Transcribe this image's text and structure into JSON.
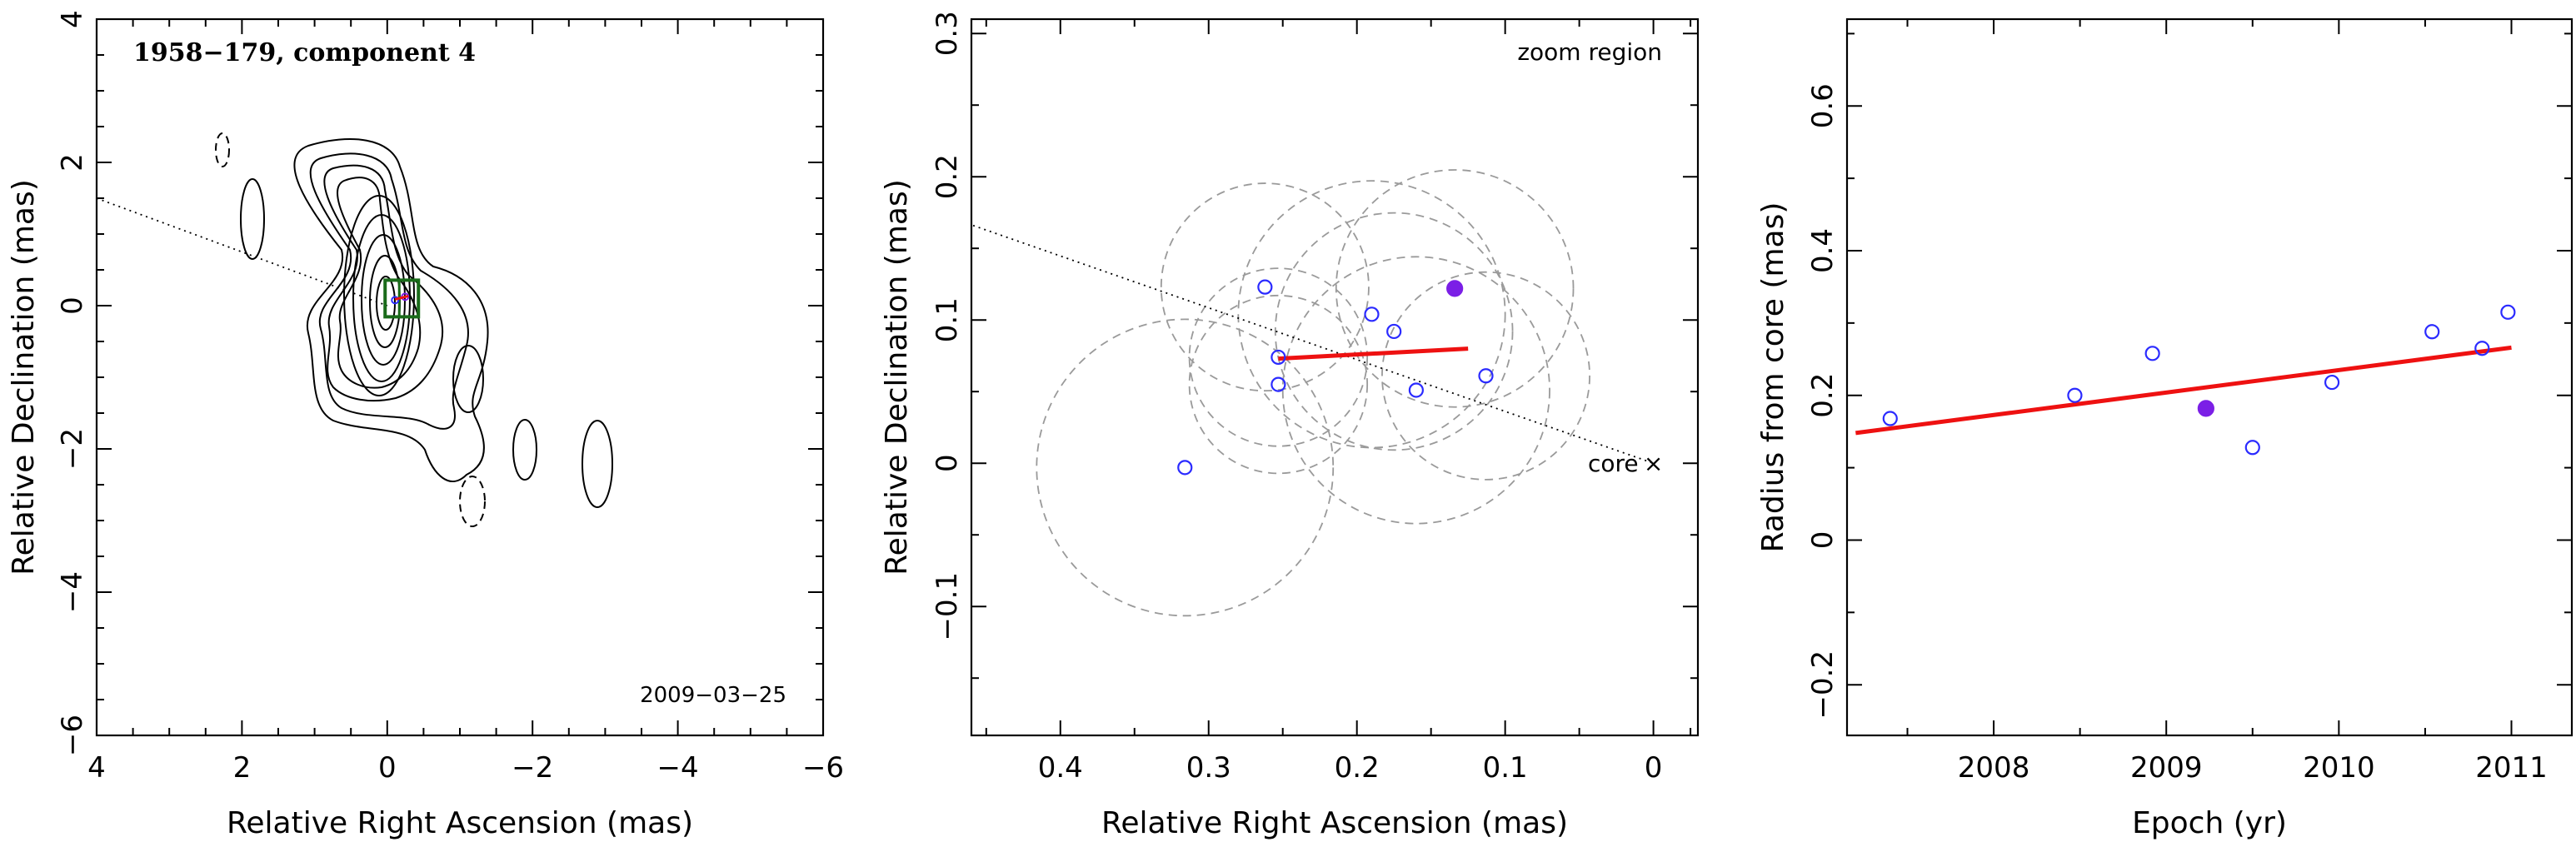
{
  "colors": {
    "open_point": "#2b2bff",
    "filled_point": "#7b1fe6",
    "fit_line": "#ee1111",
    "box": "#1a6b1a",
    "gray_circle": "#9a9a9a"
  },
  "panel1": {
    "title": "1958−179, component 4",
    "date": "2009−03−25",
    "xlabel": "Relative Right Ascension (mas)",
    "ylabel": "Relative Declination (mas)",
    "x_ticks": [
      "4",
      "2",
      "0",
      "−2",
      "−4",
      "−6"
    ],
    "y_ticks": [
      "4",
      "2",
      "0",
      "−2",
      "−4",
      "−6"
    ]
  },
  "panel2": {
    "annotation": "zoom region",
    "core_label": "core",
    "core_marker": "×",
    "xlabel": "Relative Right Ascension (mas)",
    "ylabel": "Relative Declination (mas)",
    "x_ticks": [
      "0.4",
      "0.3",
      "0.2",
      "0.1",
      "0"
    ],
    "y_ticks": [
      "0.3",
      "0.2",
      "0.1",
      "0",
      "−0.1"
    ]
  },
  "panel3": {
    "xlabel": "Epoch (yr)",
    "ylabel": "Radius from core (mas)",
    "x_ticks": [
      "2008",
      "2009",
      "2010",
      "2011"
    ],
    "y_ticks": [
      "0.6",
      "0.4",
      "0.2",
      "0",
      "−0.2"
    ]
  },
  "chart_data": [
    {
      "type": "scatter",
      "panel": "contour map",
      "xlim": [
        4,
        -6
      ],
      "ylim": [
        -6,
        4
      ],
      "ridge_line": {
        "x": [
          4,
          0
        ],
        "y": [
          1.5,
          0
        ]
      },
      "component_box_center": [
        -0.2,
        0.1
      ]
    },
    {
      "type": "scatter",
      "panel": "zoom region",
      "xlim": [
        0.46,
        -0.03
      ],
      "ylim": [
        -0.19,
        0.31
      ],
      "core": [
        0,
        0
      ],
      "points": [
        {
          "x": 0.316,
          "y": -0.003,
          "filled": false
        },
        {
          "x": 0.262,
          "y": 0.123,
          "filled": false
        },
        {
          "x": 0.253,
          "y": 0.074,
          "filled": false
        },
        {
          "x": 0.253,
          "y": 0.055,
          "filled": false
        },
        {
          "x": 0.19,
          "y": 0.104,
          "filled": false
        },
        {
          "x": 0.175,
          "y": 0.092,
          "filled": false
        },
        {
          "x": 0.16,
          "y": 0.051,
          "filled": false
        },
        {
          "x": 0.113,
          "y": 0.061,
          "filled": false
        },
        {
          "x": 0.134,
          "y": 0.122,
          "filled": true
        }
      ],
      "fit_line": {
        "x": [
          0.253,
          0.125
        ],
        "y": [
          0.073,
          0.08
        ]
      },
      "ridge_line": {
        "x": [
          0.47,
          0
        ],
        "y": [
          0.17,
          0
        ]
      },
      "error_circles": [
        {
          "x": 0.262,
          "y": 0.123,
          "r": 0.07
        },
        {
          "x": 0.19,
          "y": 0.104,
          "r": 0.09
        },
        {
          "x": 0.175,
          "y": 0.092,
          "r": 0.08
        },
        {
          "x": 0.16,
          "y": 0.051,
          "r": 0.09
        },
        {
          "x": 0.134,
          "y": 0.122,
          "r": 0.08
        },
        {
          "x": 0.113,
          "y": 0.061,
          "r": 0.07
        },
        {
          "x": 0.253,
          "y": 0.055,
          "r": 0.06
        },
        {
          "x": 0.253,
          "y": 0.074,
          "r": 0.06
        },
        {
          "x": 0.316,
          "y": -0.003,
          "r": 0.1
        }
      ]
    },
    {
      "type": "scatter",
      "panel": "radius vs epoch",
      "xlim": [
        2007.15,
        2011.35
      ],
      "ylim": [
        -0.27,
        0.72
      ],
      "points": [
        {
          "x": 2007.4,
          "y": 0.168,
          "filled": false
        },
        {
          "x": 2008.47,
          "y": 0.2,
          "filled": false
        },
        {
          "x": 2008.92,
          "y": 0.258,
          "filled": false
        },
        {
          "x": 2009.23,
          "y": 0.182,
          "filled": true
        },
        {
          "x": 2009.5,
          "y": 0.128,
          "filled": false
        },
        {
          "x": 2009.96,
          "y": 0.218,
          "filled": false
        },
        {
          "x": 2010.54,
          "y": 0.288,
          "filled": false
        },
        {
          "x": 2010.83,
          "y": 0.265,
          "filled": false
        },
        {
          "x": 2010.98,
          "y": 0.315,
          "filled": false
        }
      ],
      "fit_line": {
        "x": [
          2007.2,
          2011.0
        ],
        "y": [
          0.148,
          0.266
        ]
      }
    }
  ]
}
